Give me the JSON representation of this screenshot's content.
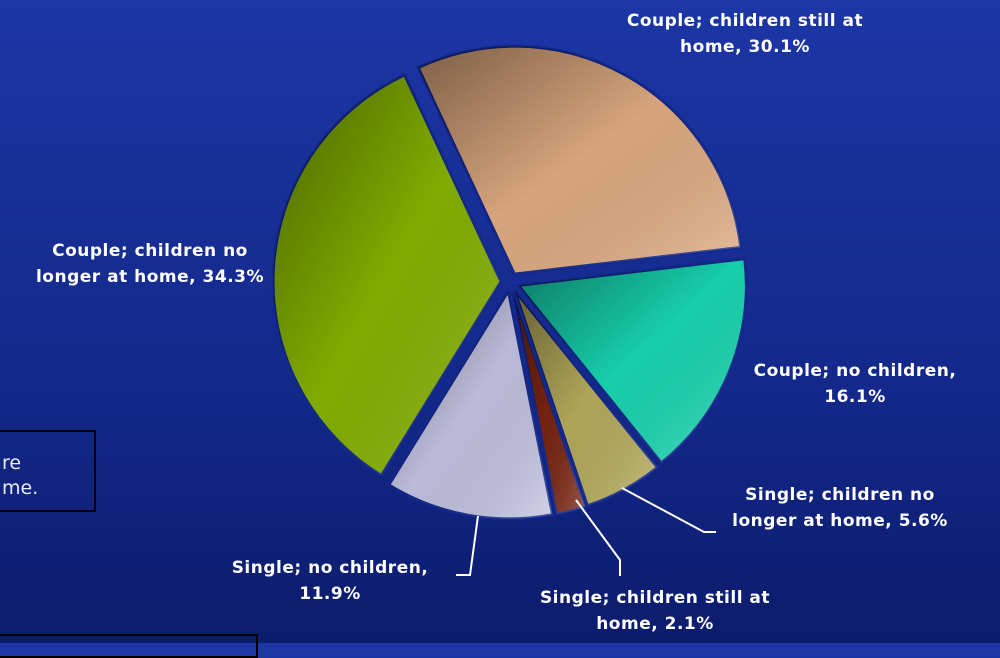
{
  "chart_data": {
    "type": "pie",
    "categories": [
      "Couple; children still at home",
      "Couple; no children",
      "Single; children no longer at home",
      "Single; children still at home",
      "Single; no children",
      "Couple; children no longer at home"
    ],
    "values": [
      30.1,
      16.1,
      5.6,
      2.1,
      11.9,
      34.3
    ],
    "value_labels": [
      "30.1%",
      "16.1%",
      "5.6%",
      "2.1%",
      "11.9%",
      "34.3%"
    ],
    "colors": [
      "#e2ad82",
      "#18d9b4",
      "#b8ad5c",
      "#7a2410",
      "#c4c4e4",
      "#86b400"
    ],
    "annotations": [
      "re",
      "me."
    ]
  }
}
